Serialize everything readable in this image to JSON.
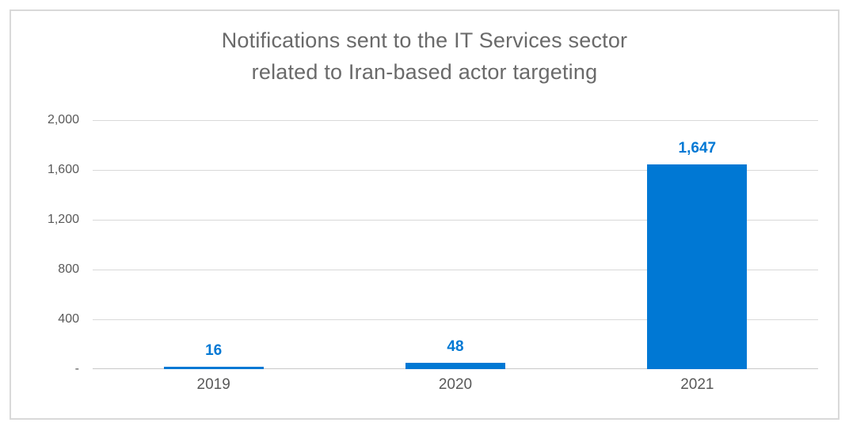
{
  "chart": {
    "title_line1": "Notifications sent to the IT Services sector",
    "title_line2": "related to Iran-based actor targeting"
  },
  "chart_data": {
    "type": "bar",
    "title": "Notifications sent to the IT Services sector related to Iran-based actor targeting",
    "title_lines": [
      "Notifications sent to the IT Services sector",
      "related to Iran-based actor targeting"
    ],
    "categories": [
      "2019",
      "2020",
      "2021"
    ],
    "values": [
      16,
      48,
      1647
    ],
    "value_labels": [
      "16",
      "48",
      "1,647"
    ],
    "yticks": [
      {
        "value": 0,
        "label": "-"
      },
      {
        "value": 400,
        "label": "400"
      },
      {
        "value": 800,
        "label": "800"
      },
      {
        "value": 1200,
        "label": "1,200"
      },
      {
        "value": 1600,
        "label": "1,600"
      },
      {
        "value": 2000,
        "label": "2,000"
      }
    ],
    "ylim": [
      0,
      2000
    ],
    "xlabel": "",
    "ylabel": "",
    "grid": "horizontal",
    "legend": "none",
    "bar_color": "#0078D4",
    "value_label_color": "#0078D4",
    "axis_text_color": "#595959",
    "title_color": "#6A6A6A",
    "gridline_color": "#D9D9D9",
    "axis_line_color": "#C8C8C8",
    "frame_border_color": "#D9D9D9"
  }
}
